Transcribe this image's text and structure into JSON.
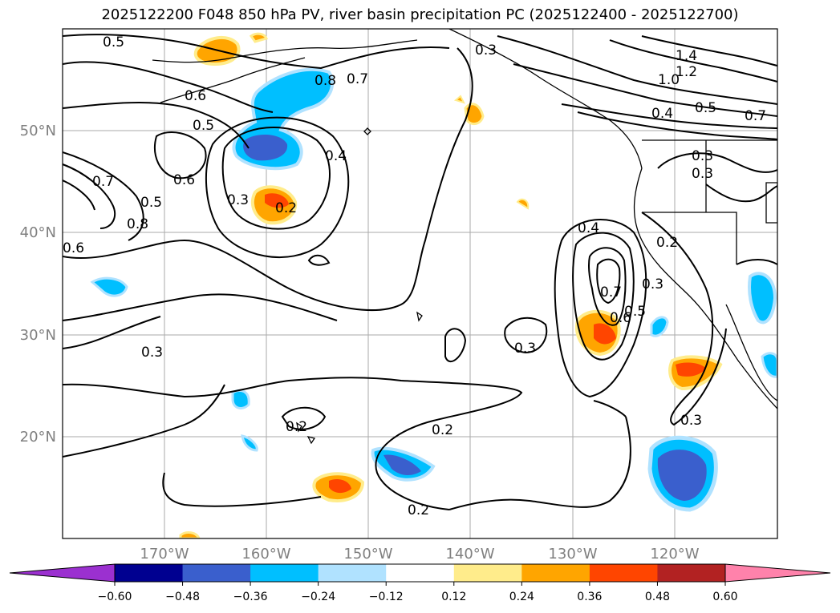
{
  "title": "2025122200 F048 850 hPa PV, river basin precipitation PC (2025122400 - 2025122700)",
  "lat_ticks": [
    "50°N",
    "40°N",
    "30°N",
    "20°N"
  ],
  "lon_ticks": [
    "170°W",
    "160°W",
    "150°W",
    "140°W",
    "130°W",
    "120°W"
  ],
  "colorbar": {
    "tick_labels": [
      "−0.60",
      "−0.48",
      "−0.36",
      "−0.24",
      "−0.12",
      "0.12",
      "0.24",
      "0.36",
      "0.48",
      "0.60"
    ],
    "colors": [
      "#9b30d0",
      "#000090",
      "#3a5fcd",
      "#00bfff",
      "#b0e2ff",
      "#ffffff",
      "#ffec8b",
      "#ffa500",
      "#ff4500",
      "#b22222",
      "#ff82ab"
    ]
  },
  "contour_labels": [
    "0.5",
    "0.6",
    "0.5",
    "0.8",
    "0.7",
    "0.6",
    "0.4",
    "0.3",
    "0.2",
    "0.7",
    "0.5",
    "0.8",
    "0.6",
    "0.3",
    "0.3",
    "0.2",
    "0.2",
    "0.2",
    "0.4",
    "0.7",
    "0.6",
    "0.5",
    "0.3",
    "0.2",
    "0.3",
    "0.3",
    "1.0",
    "1.2",
    "1.4",
    "0.4",
    "0.5",
    "0.7",
    "0.3",
    "0.3"
  ]
}
